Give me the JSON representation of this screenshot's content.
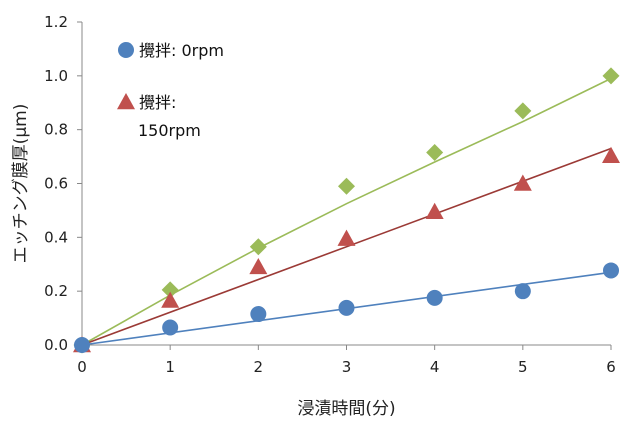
{
  "chart_data": {
    "type": "scatter",
    "xlabel": "浸漬時間(分)",
    "ylabel": "エッチング膜厚(μm)",
    "xlim": [
      0,
      6
    ],
    "ylim": [
      0,
      1.2
    ],
    "xticks": [
      "0",
      "1",
      "2",
      "3",
      "4",
      "5",
      "6"
    ],
    "yticks": [
      "0.0",
      "0.2",
      "0.4",
      "0.6",
      "0.8",
      "1.0",
      "1.2"
    ],
    "grid": false,
    "legend_position": "top-left",
    "series": [
      {
        "name": "攪拌: 0rpm",
        "marker": "circle",
        "color": "#4f81bd",
        "line_color": "#4f81bd",
        "x": [
          0,
          1,
          2,
          3,
          4,
          5,
          6
        ],
        "values": [
          0.0,
          0.065,
          0.115,
          0.138,
          0.175,
          0.2,
          0.277
        ],
        "fit": [
          [
            0,
            0.0
          ],
          [
            6,
            0.27
          ]
        ]
      },
      {
        "name": "攪拌: 150rpm",
        "marker": "triangle",
        "color": "#c0504d",
        "line_color": "#9b3a36",
        "x": [
          0,
          1,
          2,
          3,
          4,
          5,
          6
        ],
        "values": [
          0.0,
          0.165,
          0.29,
          0.395,
          0.495,
          0.6,
          0.703
        ],
        "fit": [
          [
            0,
            0.0
          ],
          [
            6,
            0.73
          ]
        ]
      },
      {
        "marker": "diamond",
        "color": "#9bbb59",
        "line_color": "#9bbb59",
        "x": [
          0,
          1,
          2,
          3,
          4,
          5,
          6
        ],
        "values": [
          0.0,
          0.205,
          0.365,
          0.59,
          0.715,
          0.87,
          1.0
        ],
        "fit": [
          [
            0,
            0.0
          ],
          [
            1,
            0.185
          ],
          [
            2,
            0.36
          ],
          [
            3,
            0.525
          ],
          [
            4,
            0.68
          ],
          [
            5,
            0.83
          ],
          [
            6,
            0.99
          ]
        ]
      }
    ],
    "legend": [
      {
        "lines": [
          "攪拌: 0rpm"
        ],
        "marker": "circle",
        "color": "#4f81bd"
      },
      {
        "lines": [
          "攪拌:",
          "150rpm"
        ],
        "marker": "triangle",
        "color": "#c0504d"
      }
    ]
  }
}
